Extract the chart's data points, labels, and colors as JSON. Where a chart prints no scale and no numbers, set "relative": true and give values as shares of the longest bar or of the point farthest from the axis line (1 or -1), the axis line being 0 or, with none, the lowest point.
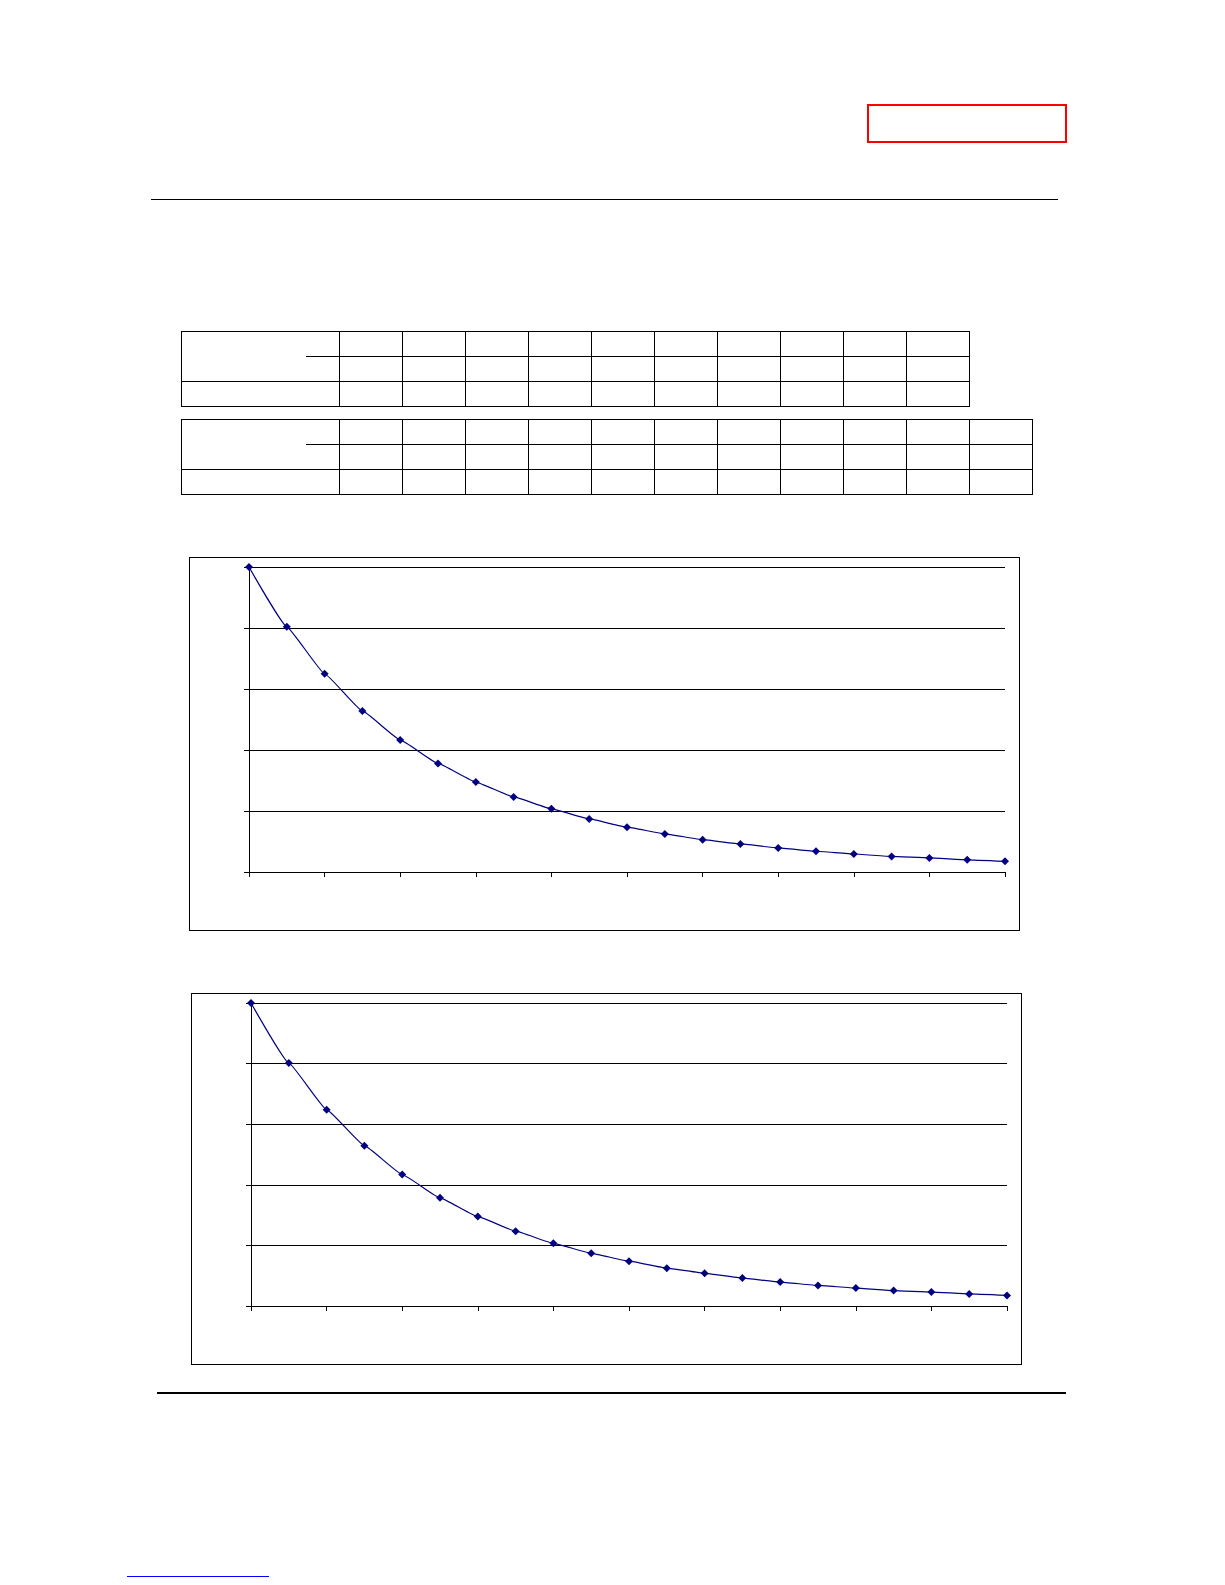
{
  "chart_data": [
    {
      "type": "line",
      "relative": true,
      "categories": [
        null,
        null,
        null,
        null,
        null,
        null,
        null,
        null,
        null,
        null,
        null,
        null,
        null,
        null,
        null,
        null,
        null,
        null,
        null,
        null,
        null
      ],
      "grid": "y",
      "marker": "diamond",
      "line_style": "solid",
      "series": [
        {
          "color": "#000080",
          "values": [
            1,
            0.804,
            0.65,
            0.528,
            0.433,
            0.356,
            0.295,
            0.246,
            0.207,
            0.174,
            0.147,
            0.125,
            0.106,
            0.092,
            0.079,
            0.068,
            0.059,
            0.051,
            0.046,
            0.04,
            0.035
          ]
        }
      ]
    },
    {
      "type": "line",
      "relative": true,
      "categories": [
        null,
        null,
        null,
        null,
        null,
        null,
        null,
        null,
        null,
        null,
        null,
        null,
        null,
        null,
        null,
        null,
        null,
        null,
        null,
        null,
        null
      ],
      "grid": "y",
      "marker": "diamond",
      "line_style": "solid",
      "series": [
        {
          "color": "#000080",
          "values": [
            1,
            0.802,
            0.648,
            0.529,
            0.434,
            0.357,
            0.295,
            0.247,
            0.207,
            0.174,
            0.148,
            0.125,
            0.108,
            0.092,
            0.079,
            0.068,
            0.059,
            0.051,
            0.046,
            0.04,
            0.035
          ]
        }
      ]
    }
  ]
}
